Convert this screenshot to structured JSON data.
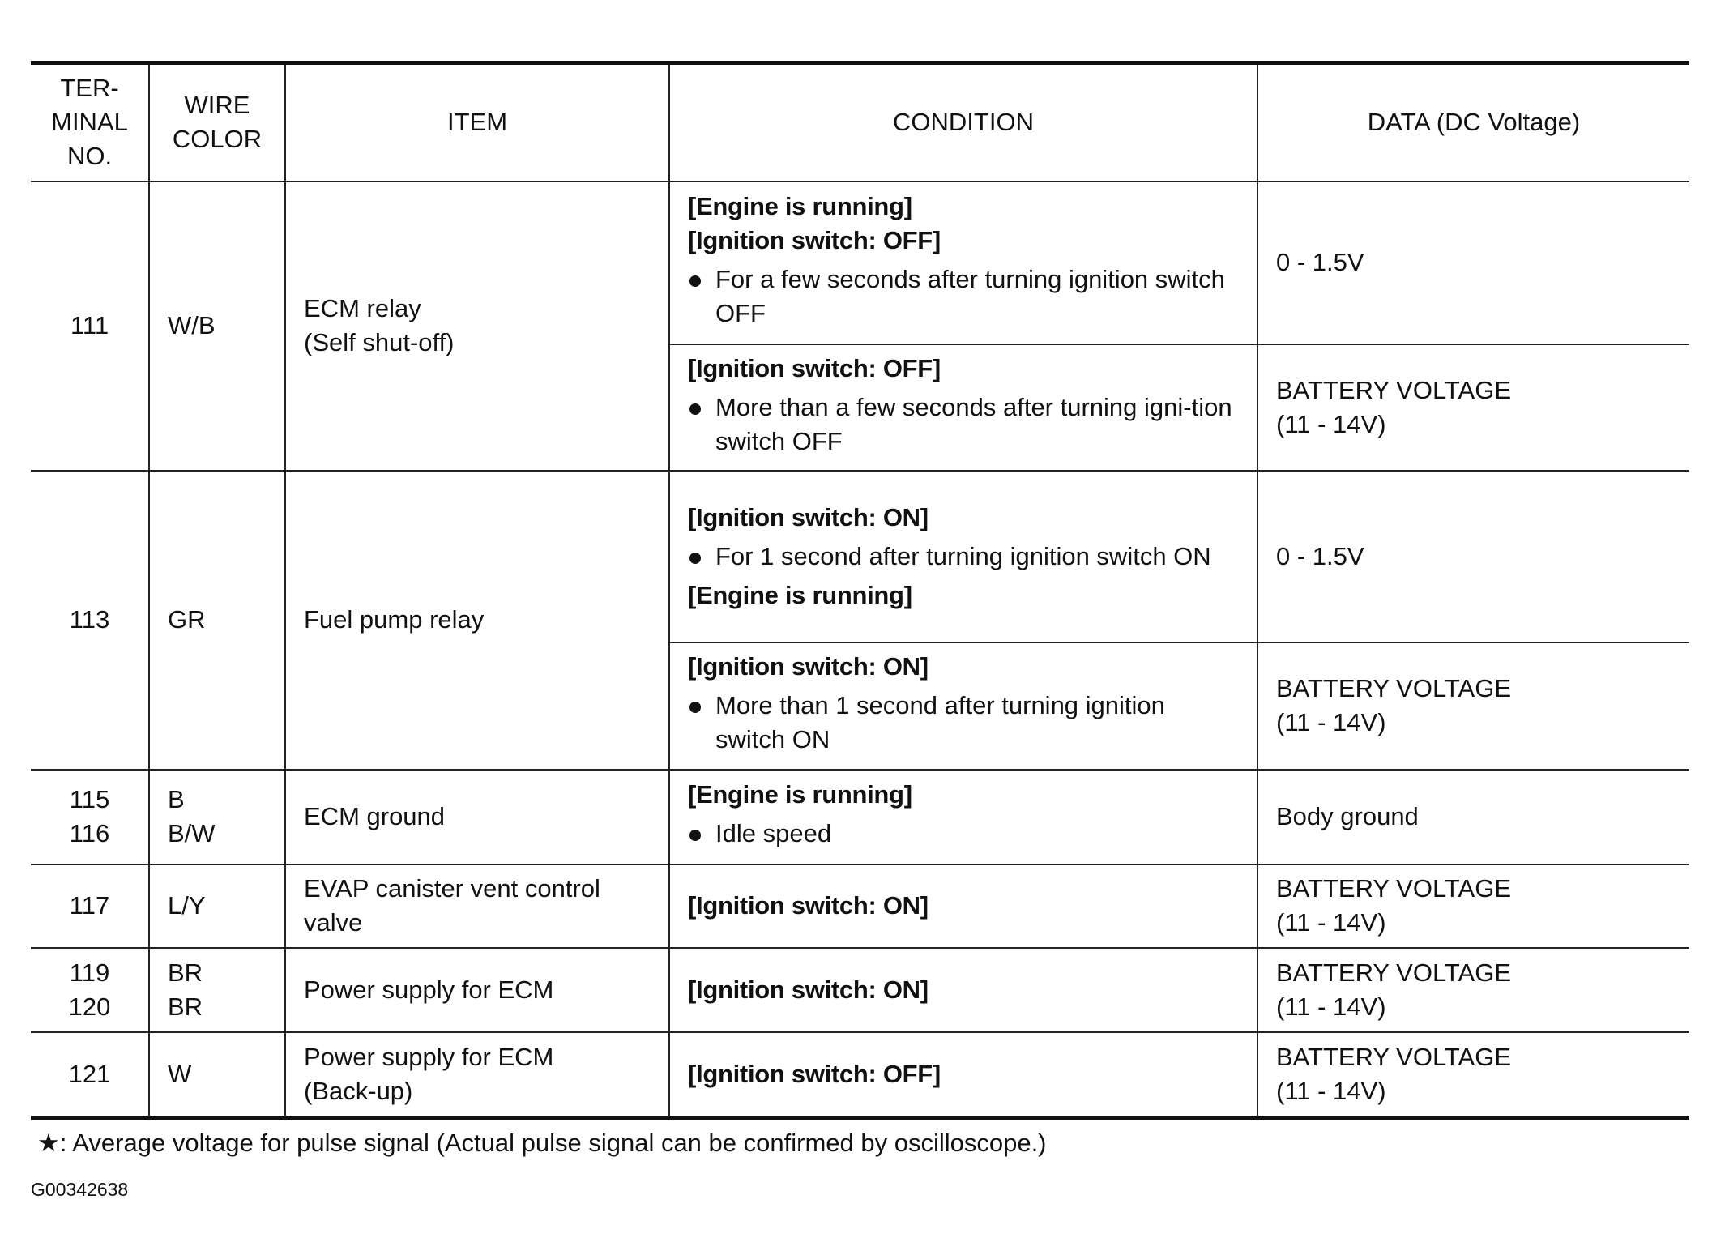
{
  "headers": [
    "TER-\nMINAL\nNO.",
    "WIRE\nCOLOR",
    "ITEM",
    "CONDITION",
    "DATA (DC Voltage)"
  ],
  "rows": [
    {
      "terminal": [
        "111"
      ],
      "wire": [
        "W/B"
      ],
      "item": [
        "ECM relay",
        "(Self shut-off)"
      ],
      "conditions": [
        {
          "lines": [
            {
              "type": "heading",
              "text": "[Engine is running]"
            },
            {
              "type": "heading",
              "text": "[Ignition switch: OFF]"
            },
            {
              "type": "bullet",
              "text": "For a few seconds after turning ignition switch OFF"
            }
          ],
          "data": [
            "0 - 1.5V"
          ]
        },
        {
          "lines": [
            {
              "type": "heading",
              "text": "[Ignition switch: OFF]"
            },
            {
              "type": "bullet",
              "text": "More than a few seconds after turning igni-tion switch OFF"
            }
          ],
          "data": [
            "BATTERY VOLTAGE",
            "(11 - 14V)"
          ]
        }
      ]
    },
    {
      "terminal": [
        "113"
      ],
      "wire": [
        "GR"
      ],
      "item": [
        "Fuel pump relay"
      ],
      "conditions": [
        {
          "lines": [
            {
              "type": "heading",
              "text": "[Ignition switch: ON]"
            },
            {
              "type": "bullet",
              "text": "For 1 second after turning ignition switch ON"
            },
            {
              "type": "heading",
              "text": "[Engine is running]"
            }
          ],
          "data": [
            "0 - 1.5V"
          ]
        },
        {
          "lines": [
            {
              "type": "heading",
              "text": "[Ignition switch: ON]"
            },
            {
              "type": "bullet",
              "text": "More than 1 second after turning ignition switch ON"
            }
          ],
          "data": [
            "BATTERY VOLTAGE",
            "(11 - 14V)"
          ]
        }
      ]
    },
    {
      "terminal": [
        "115",
        "116"
      ],
      "wire": [
        "B",
        "B/W"
      ],
      "item": [
        "ECM ground"
      ],
      "conditions": [
        {
          "lines": [
            {
              "type": "heading",
              "text": "[Engine is running]"
            },
            {
              "type": "bullet",
              "text": "Idle speed"
            }
          ],
          "data": [
            "Body ground"
          ]
        }
      ]
    },
    {
      "terminal": [
        "117"
      ],
      "wire": [
        "L/Y"
      ],
      "item": [
        "EVAP canister vent control valve"
      ],
      "conditions": [
        {
          "lines": [
            {
              "type": "heading",
              "text": "[Ignition switch: ON]"
            }
          ],
          "data": [
            "BATTERY VOLTAGE",
            "(11 - 14V)"
          ]
        }
      ]
    },
    {
      "terminal": [
        "119",
        "120"
      ],
      "wire": [
        "BR",
        "BR"
      ],
      "item": [
        "Power supply for ECM"
      ],
      "conditions": [
        {
          "lines": [
            {
              "type": "heading",
              "text": "[Ignition switch: ON]"
            }
          ],
          "data": [
            "BATTERY VOLTAGE",
            "(11 - 14V)"
          ]
        }
      ]
    },
    {
      "terminal": [
        "121"
      ],
      "wire": [
        "W"
      ],
      "item": [
        "Power supply for ECM",
        "(Back-up)"
      ],
      "conditions": [
        {
          "lines": [
            {
              "type": "heading",
              "text": "[Ignition switch: OFF]"
            }
          ],
          "data": [
            "BATTERY VOLTAGE",
            "(11 - 14V)"
          ]
        }
      ]
    }
  ],
  "footnote": "★: Average voltage for pulse signal (Actual pulse signal can be confirmed by oscilloscope.)",
  "figure_code": "G00342638"
}
